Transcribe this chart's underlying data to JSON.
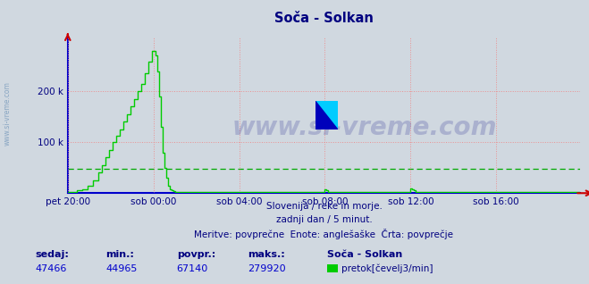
{
  "title": "Soča - Solkan",
  "title_color": "#000080",
  "bg_color": "#d0d8e0",
  "plot_bg_color": "#d0d8e0",
  "line_color": "#00cc00",
  "avg_line_color": "#00aa00",
  "avg_value": 47466,
  "min_value": 44965,
  "max_value": 279920,
  "povpr_value": 67140,
  "sedaj_value": 47466,
  "ylim_max": 307000,
  "yticks": [
    100000,
    200000
  ],
  "ytick_labels": [
    "100 k",
    "200 k"
  ],
  "xlabel_color": "#000080",
  "grid_color": "#ee8888",
  "left_axis_color": "#0000cc",
  "x_axis_color": "#0000cc",
  "watermark_text": "www.si-vreme.com",
  "watermark_color": "#000080",
  "watermark_alpha": 0.18,
  "footnote1": "Slovenija / reke in morje.",
  "footnote2": "zadnji dan / 5 minut.",
  "footnote3": "Meritve: povprečne  Enote: anglešaške  Črta: povprečje",
  "footnote_color": "#000080",
  "legend_station": "Soča - Solkan",
  "legend_label": "pretok[čevelj3/min]",
  "sidebar_text": "www.si-vreme.com",
  "sidebar_color": "#7799bb",
  "bottom_labels": [
    "sedaj:",
    "min.:",
    "povpr.:",
    "maks.:"
  ],
  "bottom_values": [
    "47466",
    "44965",
    "67140",
    "279920"
  ],
  "bottom_label_color": "#000080",
  "bottom_value_color": "#0000cc",
  "num_points": 288,
  "base_value": 3000,
  "post_spike_value": 3000,
  "x_tick_positions": [
    0,
    48,
    96,
    144,
    192,
    240,
    287
  ],
  "x_tick_labels": [
    "pet 20:00",
    "sob 00:00",
    "sob 04:00",
    "sob 08:00",
    "sob 12:00",
    "sob 16:00",
    ""
  ],
  "logo_colors": [
    "#ffff00",
    "#00ccff",
    "#0000cc"
  ]
}
